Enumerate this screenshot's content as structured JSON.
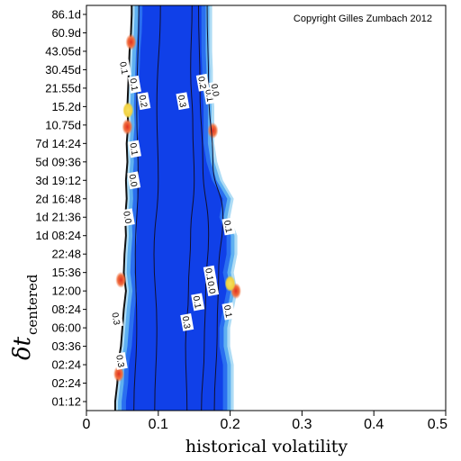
{
  "chart_data": {
    "type": "heatmap",
    "title": "",
    "copyright": "Copyright Gilles Zumbach 2012",
    "xlabel": "historical volatility",
    "ylabel_main": "δt",
    "ylabel_sub": "centered",
    "xlim": [
      0,
      0.5
    ],
    "x_ticks": [
      0,
      0.1,
      0.2,
      0.3,
      0.4,
      0.5
    ],
    "x_tick_labels": [
      "0",
      "0.1",
      "0.2",
      "0.3",
      "0.4",
      "0.5"
    ],
    "y_tick_labels": [
      "01:12",
      "02:24",
      "02:24",
      "03:36",
      "06:00",
      "08:24",
      "12:00",
      "15:36",
      "22:48",
      "1d 08:24",
      "1d 21:36",
      "2d 16:48",
      "3d 19:12",
      "5d 09:36",
      "7d 14:24",
      "10.75d",
      "15.2d",
      "21.55d",
      "30.45d",
      "43.05d",
      "60.9d",
      "86.1d"
    ],
    "grid": false,
    "colors": {
      "deep": "#1040e8",
      "mid": "#2a6ff0",
      "light": "#5fb0f0",
      "pale": "#aedcf5",
      "warm": "#f0d040",
      "hot": "#e03020"
    },
    "rows": [
      {
        "row": "01:12",
        "left": 0.04,
        "right": 0.205
      },
      {
        "row": "02:24",
        "left": 0.043,
        "right": 0.205
      },
      {
        "row": "02:24",
        "left": 0.044,
        "right": 0.205
      },
      {
        "row": "03:36",
        "left": 0.048,
        "right": 0.2
      },
      {
        "row": "06:00",
        "left": 0.05,
        "right": 0.2
      },
      {
        "row": "08:24",
        "left": 0.052,
        "right": 0.205
      },
      {
        "row": "12:00",
        "left": 0.055,
        "right": 0.21
      },
      {
        "row": "15:36",
        "left": 0.052,
        "right": 0.205
      },
      {
        "row": "22:48",
        "left": 0.053,
        "right": 0.21
      },
      {
        "row": "1d 08:24",
        "left": 0.055,
        "right": 0.21
      },
      {
        "row": "1d 21:36",
        "left": 0.054,
        "right": 0.2
      },
      {
        "row": "2d 16:48",
        "left": 0.056,
        "right": 0.205
      },
      {
        "row": "3d 19:12",
        "left": 0.055,
        "right": 0.19
      },
      {
        "row": "5d 09:36",
        "left": 0.057,
        "right": 0.182
      },
      {
        "row": "7d 14:24",
        "left": 0.056,
        "right": 0.178
      },
      {
        "row": "10.75d",
        "left": 0.058,
        "right": 0.178
      },
      {
        "row": "15.2d",
        "left": 0.057,
        "right": 0.178
      },
      {
        "row": "21.55d",
        "left": 0.058,
        "right": 0.176
      },
      {
        "row": "30.45d",
        "left": 0.059,
        "right": 0.176
      },
      {
        "row": "43.05d",
        "left": 0.06,
        "right": 0.175
      },
      {
        "row": "60.9d",
        "left": 0.062,
        "right": 0.175
      },
      {
        "row": "86.1d",
        "left": 0.063,
        "right": 0.175
      }
    ],
    "hotspots": [
      {
        "x": 0.062,
        "row": 19.5,
        "color": "hot"
      },
      {
        "x": 0.058,
        "row": 15.8,
        "color": "warm"
      },
      {
        "x": 0.057,
        "row": 14.9,
        "color": "hot"
      },
      {
        "x": 0.048,
        "row": 6.6,
        "color": "hot"
      },
      {
        "x": 0.045,
        "row": 1.5,
        "color": "hot"
      },
      {
        "x": 0.176,
        "row": 14.7,
        "color": "hot"
      },
      {
        "x": 0.208,
        "row": 6.0,
        "color": "hot"
      },
      {
        "x": 0.2,
        "row": 6.4,
        "color": "warm"
      }
    ],
    "contours": [
      {
        "level": "0.3",
        "points": [
          [
            0.14,
            0
          ],
          [
            0.138,
            3
          ],
          [
            0.142,
            6
          ],
          [
            0.145,
            9
          ],
          [
            0.15,
            12
          ],
          [
            0.148,
            15
          ],
          [
            0.145,
            18
          ],
          [
            0.147,
            21.6
          ]
        ]
      },
      {
        "level": "0.3",
        "points": [
          [
            0.095,
            0
          ],
          [
            0.098,
            4
          ],
          [
            0.094,
            8
          ],
          [
            0.1,
            12
          ],
          [
            0.098,
            16
          ],
          [
            0.103,
            21.6
          ]
        ]
      },
      {
        "level": "0.1",
        "points": [
          [
            0.066,
            0
          ],
          [
            0.07,
            4
          ],
          [
            0.068,
            8
          ],
          [
            0.072,
            12
          ],
          [
            0.07,
            16
          ],
          [
            0.073,
            21.6
          ]
        ]
      },
      {
        "level": "0.1",
        "points": [
          [
            0.178,
            0
          ],
          [
            0.182,
            4
          ],
          [
            0.184,
            7
          ],
          [
            0.19,
            10
          ],
          [
            0.176,
            13
          ],
          [
            0.17,
            17
          ],
          [
            0.168,
            21.6
          ]
        ]
      },
      {
        "level": "0.2",
        "points": [
          [
            0.16,
            0
          ],
          [
            0.164,
            3
          ],
          [
            0.166,
            6
          ],
          [
            0.17,
            9
          ],
          [
            0.162,
            13
          ],
          [
            0.158,
            17
          ],
          [
            0.156,
            21.6
          ]
        ]
      }
    ],
    "contour_labels": [
      {
        "text": "0.1",
        "x": 0.053,
        "row": 18.1
      },
      {
        "text": "0.1",
        "x": 0.067,
        "row": 17.2
      },
      {
        "text": "0.2",
        "x": 0.08,
        "row": 16.3
      },
      {
        "text": "0.3",
        "x": 0.134,
        "row": 16.3
      },
      {
        "text": "0.2",
        "x": 0.162,
        "row": 17.3
      },
      {
        "text": "0.1",
        "x": 0.172,
        "row": 16.6
      },
      {
        "text": "0.0",
        "x": 0.18,
        "row": 16.9
      },
      {
        "text": "0.1",
        "x": 0.067,
        "row": 13.7
      },
      {
        "text": "0.0",
        "x": 0.066,
        "row": 12.0
      },
      {
        "text": "0.0",
        "x": 0.058,
        "row": 10.0
      },
      {
        "text": "0.1",
        "x": 0.198,
        "row": 9.5
      },
      {
        "text": "0.1",
        "x": 0.172,
        "row": 6.9
      },
      {
        "text": "0.0",
        "x": 0.175,
        "row": 6.2
      },
      {
        "text": "0.3",
        "x": 0.14,
        "row": 4.3
      },
      {
        "text": "0.1",
        "x": 0.155,
        "row": 5.4
      },
      {
        "text": "0.1",
        "x": 0.198,
        "row": 4.9
      },
      {
        "text": "0.3",
        "x": 0.042,
        "row": 4.5
      },
      {
        "text": "0.3",
        "x": 0.048,
        "row": 2.2
      }
    ]
  }
}
